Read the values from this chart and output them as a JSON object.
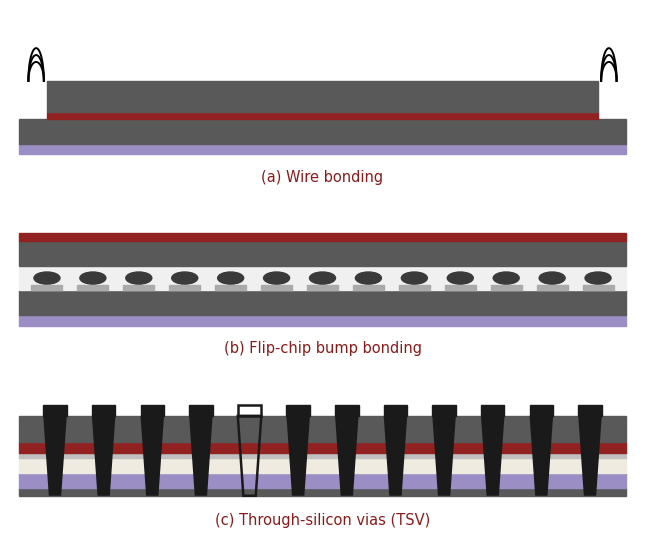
{
  "bg_color": "#ffffff",
  "dark_gray": "#595959",
  "mid_gray": "#aaaaaa",
  "light_gray": "#cccccc",
  "red_brown": "#922222",
  "purple": "#9b8ec4",
  "bump_dark": "#3a3a3a",
  "tsv_black": "#1a1a1a",
  "cream": "#f0ebe0",
  "silver": "#c0c0c0",
  "label_color": "#8B1A1A",
  "labels": [
    "(a) Wire bonding",
    "(b) Flip-chip bump bonding",
    "(c) Through-silicon vias (TSV)"
  ],
  "label_fontsize": 10.5,
  "panel_bg": "#ffffff"
}
